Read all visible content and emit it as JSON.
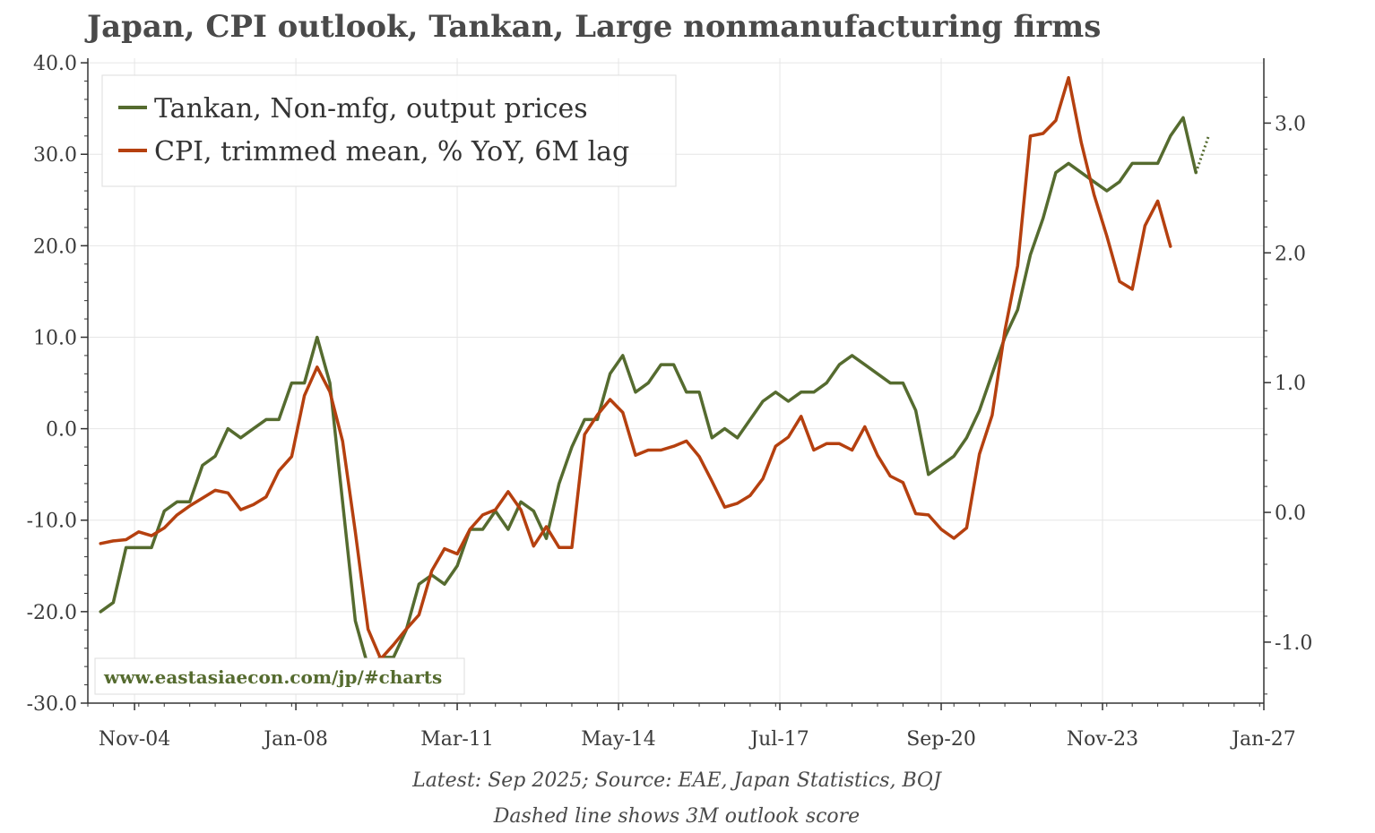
{
  "chart_data": {
    "type": "line",
    "title": "Japan, CPI outlook, Tankan, Large nonmanufacturing firms",
    "xlabel": "",
    "ylabel": "",
    "x_ticks": [
      "Nov-04",
      "Jan-08",
      "Mar-11",
      "May-14",
      "Jul-17",
      "Sep-20",
      "Nov-23",
      "Jan-27"
    ],
    "y_left_ticks": [
      "40.0",
      "30.0",
      "20.0",
      "10.0",
      "0.0",
      "-10.0",
      "-20.0",
      "-30.0"
    ],
    "y_right_ticks": [
      "3.0",
      "2.0",
      "1.0",
      "0.0",
      "-1.0"
    ],
    "ylim_left": [
      -30,
      40.5
    ],
    "ylim_right": [
      -1.47,
      3.5
    ],
    "xlim": [
      "2003-12",
      "2027-01"
    ],
    "grid": true,
    "legend_position": "top-left",
    "series": [
      {
        "name": "Tankan, Non-mfg, output prices",
        "axis": "left",
        "color": "#556b2f",
        "points": [
          [
            "2004-03",
            -20
          ],
          [
            "2004-06",
            -19
          ],
          [
            "2004-09",
            -13
          ],
          [
            "2004-12",
            -13
          ],
          [
            "2005-03",
            -13
          ],
          [
            "2005-06",
            -9
          ],
          [
            "2005-09",
            -8
          ],
          [
            "2005-12",
            -8
          ],
          [
            "2006-03",
            -4
          ],
          [
            "2006-06",
            -3
          ],
          [
            "2006-09",
            0
          ],
          [
            "2006-12",
            -1
          ],
          [
            "2007-03",
            0
          ],
          [
            "2007-06",
            1
          ],
          [
            "2007-09",
            1
          ],
          [
            "2007-12",
            5
          ],
          [
            "2008-03",
            5
          ],
          [
            "2008-06",
            10
          ],
          [
            "2008-09",
            5
          ],
          [
            "2008-12",
            -8
          ],
          [
            "2009-03",
            -21
          ],
          [
            "2009-06",
            -26
          ],
          [
            "2009-09",
            -25
          ],
          [
            "2009-12",
            -25
          ],
          [
            "2010-03",
            -22
          ],
          [
            "2010-06",
            -17
          ],
          [
            "2010-09",
            -16
          ],
          [
            "2010-12",
            -17
          ],
          [
            "2011-03",
            -15
          ],
          [
            "2011-06",
            -11
          ],
          [
            "2011-09",
            -11
          ],
          [
            "2011-12",
            -9
          ],
          [
            "2012-03",
            -11
          ],
          [
            "2012-06",
            -8
          ],
          [
            "2012-09",
            -9
          ],
          [
            "2012-12",
            -12
          ],
          [
            "2013-03",
            -6
          ],
          [
            "2013-06",
            -2
          ],
          [
            "2013-09",
            1
          ],
          [
            "2013-12",
            1
          ],
          [
            "2014-03",
            6
          ],
          [
            "2014-06",
            8
          ],
          [
            "2014-09",
            4
          ],
          [
            "2014-12",
            5
          ],
          [
            "2015-03",
            7
          ],
          [
            "2015-06",
            7
          ],
          [
            "2015-09",
            4
          ],
          [
            "2015-12",
            4
          ],
          [
            "2016-03",
            -1
          ],
          [
            "2016-06",
            0
          ],
          [
            "2016-09",
            -1
          ],
          [
            "2016-12",
            1
          ],
          [
            "2017-03",
            3
          ],
          [
            "2017-06",
            4
          ],
          [
            "2017-09",
            3
          ],
          [
            "2017-12",
            4
          ],
          [
            "2018-03",
            4
          ],
          [
            "2018-06",
            5
          ],
          [
            "2018-09",
            7
          ],
          [
            "2018-12",
            8
          ],
          [
            "2019-03",
            7
          ],
          [
            "2019-06",
            6
          ],
          [
            "2019-09",
            5
          ],
          [
            "2019-12",
            5
          ],
          [
            "2020-03",
            2
          ],
          [
            "2020-06",
            -5
          ],
          [
            "2020-09",
            -4
          ],
          [
            "2020-12",
            -3
          ],
          [
            "2021-03",
            -1
          ],
          [
            "2021-06",
            2
          ],
          [
            "2021-09",
            6
          ],
          [
            "2021-12",
            10
          ],
          [
            "2022-03",
            13
          ],
          [
            "2022-06",
            19
          ],
          [
            "2022-09",
            23
          ],
          [
            "2022-12",
            28
          ],
          [
            "2023-03",
            29
          ],
          [
            "2023-06",
            28
          ],
          [
            "2023-09",
            27
          ],
          [
            "2023-12",
            26
          ],
          [
            "2024-03",
            27
          ],
          [
            "2024-06",
            29
          ],
          [
            "2024-09",
            29
          ],
          [
            "2024-12",
            29
          ],
          [
            "2025-03",
            32
          ],
          [
            "2025-06",
            34
          ],
          [
            "2025-09",
            28
          ]
        ]
      },
      {
        "name": "CPI, trimmed mean, % YoY, 6M lag",
        "axis": "right",
        "color": "#b5400f",
        "points": [
          [
            "2004-03",
            -0.24
          ],
          [
            "2004-06",
            -0.22
          ],
          [
            "2004-09",
            -0.21
          ],
          [
            "2004-12",
            -0.15
          ],
          [
            "2005-03",
            -0.18
          ],
          [
            "2005-06",
            -0.12
          ],
          [
            "2005-09",
            -0.02
          ],
          [
            "2005-12",
            0.05
          ],
          [
            "2006-03",
            0.11
          ],
          [
            "2006-06",
            0.17
          ],
          [
            "2006-09",
            0.15
          ],
          [
            "2006-12",
            0.02
          ],
          [
            "2007-03",
            0.06
          ],
          [
            "2007-06",
            0.12
          ],
          [
            "2007-09",
            0.32
          ],
          [
            "2007-12",
            0.43
          ],
          [
            "2008-03",
            0.9
          ],
          [
            "2008-06",
            1.12
          ],
          [
            "2008-09",
            0.93
          ],
          [
            "2008-12",
            0.55
          ],
          [
            "2009-03",
            -0.15
          ],
          [
            "2009-06",
            -0.9
          ],
          [
            "2009-09",
            -1.13
          ],
          [
            "2009-12",
            -1.02
          ],
          [
            "2010-03",
            -0.9
          ],
          [
            "2010-06",
            -0.79
          ],
          [
            "2010-09",
            -0.45
          ],
          [
            "2010-12",
            -0.28
          ],
          [
            "2011-03",
            -0.32
          ],
          [
            "2011-06",
            -0.13
          ],
          [
            "2011-09",
            -0.02
          ],
          [
            "2011-12",
            0.02
          ],
          [
            "2012-03",
            0.16
          ],
          [
            "2012-06",
            0.02
          ],
          [
            "2012-09",
            -0.26
          ],
          [
            "2012-12",
            -0.11
          ],
          [
            "2013-03",
            -0.27
          ],
          [
            "2013-06",
            -0.27
          ],
          [
            "2013-09",
            0.6
          ],
          [
            "2013-12",
            0.75
          ],
          [
            "2014-03",
            0.87
          ],
          [
            "2014-06",
            0.77
          ],
          [
            "2014-09",
            0.44
          ],
          [
            "2014-12",
            0.48
          ],
          [
            "2015-03",
            0.48
          ],
          [
            "2015-06",
            0.51
          ],
          [
            "2015-09",
            0.55
          ],
          [
            "2015-12",
            0.43
          ],
          [
            "2016-03",
            0.24
          ],
          [
            "2016-06",
            0.04
          ],
          [
            "2016-09",
            0.07
          ],
          [
            "2016-12",
            0.13
          ],
          [
            "2017-03",
            0.26
          ],
          [
            "2017-06",
            0.51
          ],
          [
            "2017-09",
            0.58
          ],
          [
            "2017-12",
            0.74
          ],
          [
            "2018-03",
            0.48
          ],
          [
            "2018-06",
            0.53
          ],
          [
            "2018-09",
            0.53
          ],
          [
            "2018-12",
            0.48
          ],
          [
            "2019-03",
            0.66
          ],
          [
            "2019-06",
            0.44
          ],
          [
            "2019-09",
            0.28
          ],
          [
            "2019-12",
            0.23
          ],
          [
            "2020-03",
            -0.01
          ],
          [
            "2020-06",
            -0.02
          ],
          [
            "2020-09",
            -0.13
          ],
          [
            "2020-12",
            -0.2
          ],
          [
            "2021-03",
            -0.12
          ],
          [
            "2021-06",
            0.45
          ],
          [
            "2021-09",
            0.75
          ],
          [
            "2021-12",
            1.4
          ],
          [
            "2022-03",
            1.9
          ],
          [
            "2022-06",
            2.9
          ],
          [
            "2022-09",
            2.92
          ],
          [
            "2022-12",
            3.02
          ],
          [
            "2023-03",
            3.35
          ],
          [
            "2023-06",
            2.85
          ],
          [
            "2023-09",
            2.45
          ],
          [
            "2023-12",
            2.13
          ],
          [
            "2024-03",
            1.78
          ],
          [
            "2024-06",
            1.72
          ],
          [
            "2024-09",
            2.21
          ],
          [
            "2024-12",
            2.4
          ],
          [
            "2025-03",
            2.05
          ]
        ]
      }
    ],
    "outlook": {
      "axis": "left",
      "style": "dotted",
      "color": "#556b2f",
      "points": [
        [
          "2025-09",
          28
        ],
        [
          "2025-12",
          32
        ]
      ]
    }
  },
  "legend": [
    {
      "label": "Tankan, Non-mfg, output prices",
      "color": "#556b2f"
    },
    {
      "label": "CPI, trimmed mean, % YoY, 6M lag",
      "color": "#b5400f"
    }
  ],
  "watermark": {
    "text": "www.eastasiaecon.com/jp/#charts",
    "color": "#556b2f"
  },
  "footer": {
    "line1": "Latest: Sep 2025; Source: EAE, Japan Statistics, BOJ",
    "line2": "Dashed line shows 3M outlook score"
  }
}
